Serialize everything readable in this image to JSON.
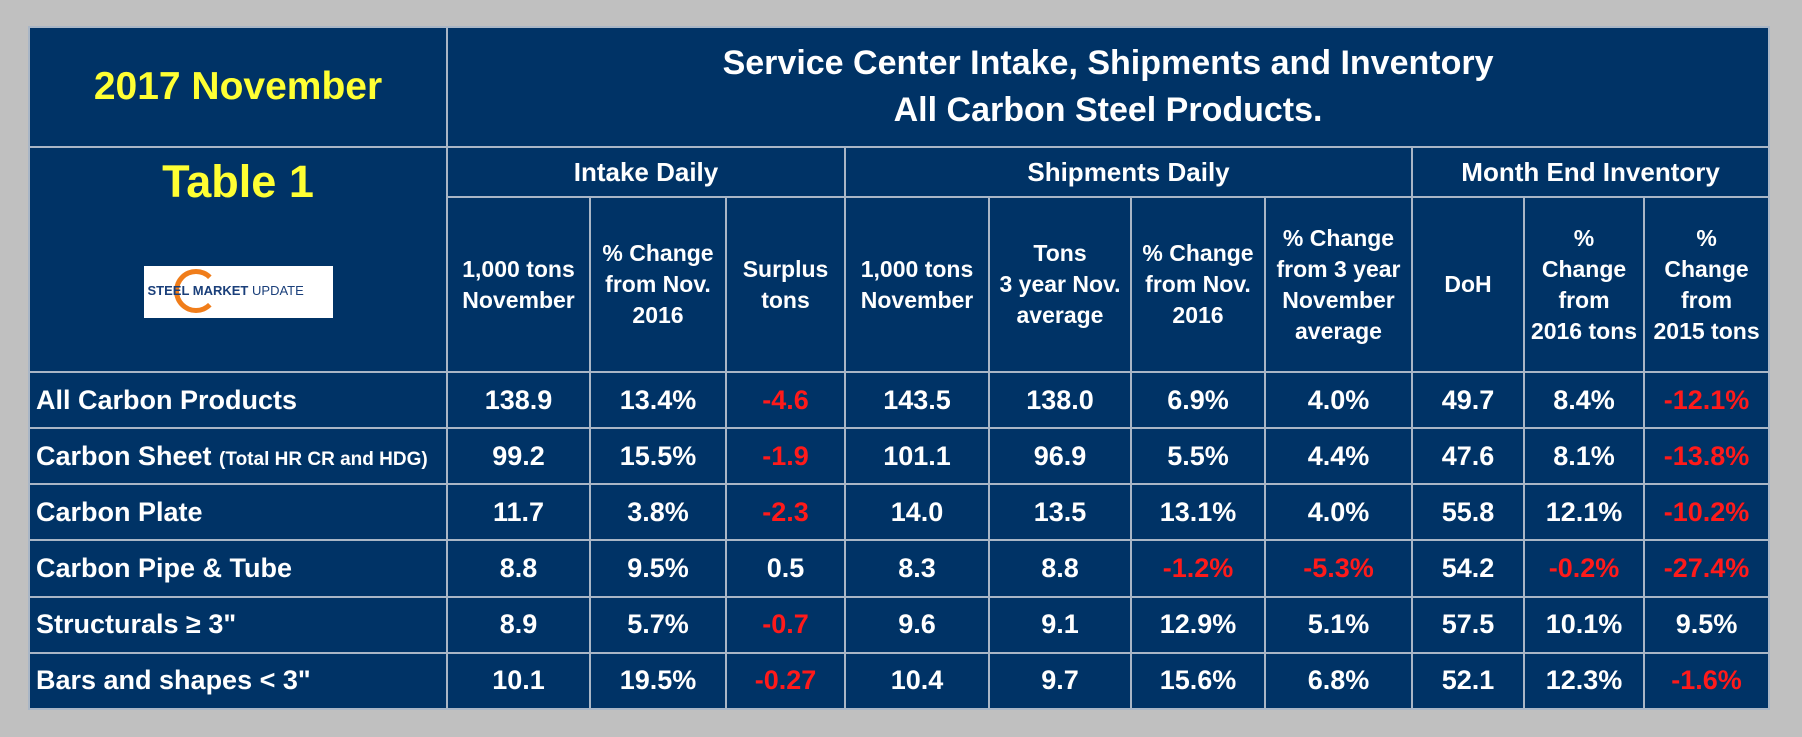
{
  "header": {
    "date_title": "2017 November",
    "title_line1": "Service Center Intake, Shipments and Inventory",
    "title_line2": "All Carbon Steel Products.",
    "table_label": "Table 1",
    "logo": {
      "text_bold": "STEEL MARKET",
      "text_thin": "UPDATE",
      "accent": "#f07d1a",
      "brand": "#1a3f7a"
    }
  },
  "groups": {
    "intake": "Intake Daily",
    "shipments": "Shipments Daily",
    "inventory": "Month End Inventory"
  },
  "columns": [
    [
      "1,000 tons",
      "November"
    ],
    [
      "% Change",
      "from Nov.",
      "2016"
    ],
    [
      "Surplus",
      "tons"
    ],
    [
      "1,000 tons",
      "November"
    ],
    [
      "Tons",
      "3 year Nov.",
      "average"
    ],
    [
      "% Change",
      "from Nov.",
      "2016"
    ],
    [
      "% Change",
      "from 3 year",
      "November",
      "average"
    ],
    [
      "DoH"
    ],
    [
      "%",
      "Change",
      "from",
      "2016 tons"
    ],
    [
      "%",
      "Change",
      "from",
      "2015 tons"
    ]
  ],
  "rows": [
    {
      "label": "All Carbon Products",
      "sublabel": "",
      "values": [
        "138.9",
        "13.4%",
        "-4.6",
        "143.5",
        "138.0",
        "6.9%",
        "4.0%",
        "49.7",
        "8.4%",
        "-12.1%"
      ]
    },
    {
      "label": "Carbon Sheet",
      "sublabel": "(Total HR CR and HDG)",
      "values": [
        "99.2",
        "15.5%",
        "-1.9",
        "101.1",
        "96.9",
        "5.5%",
        "4.4%",
        "47.6",
        "8.1%",
        "-13.8%"
      ]
    },
    {
      "label": "Carbon Plate",
      "sublabel": "",
      "values": [
        "11.7",
        "3.8%",
        "-2.3",
        "14.0",
        "13.5",
        "13.1%",
        "4.0%",
        "55.8",
        "12.1%",
        "-10.2%"
      ]
    },
    {
      "label": "Carbon Pipe & Tube",
      "sublabel": "",
      "values": [
        "8.8",
        "9.5%",
        "0.5",
        "8.3",
        "8.8",
        "-1.2%",
        "-5.3%",
        "54.2",
        "-0.2%",
        "-27.4%"
      ]
    },
    {
      "label": "Structurals ≥ 3\"",
      "sublabel": "",
      "values": [
        "8.9",
        "5.7%",
        "-0.7",
        "9.6",
        "9.1",
        "12.9%",
        "5.1%",
        "57.5",
        "10.1%",
        "9.5%"
      ]
    },
    {
      "label": "Bars and shapes < 3\"",
      "sublabel": "",
      "values": [
        "10.1",
        "19.5%",
        "-0.27",
        "10.4",
        "9.7",
        "15.6%",
        "6.8%",
        "52.1",
        "12.3%",
        "-1.6%"
      ]
    }
  ],
  "colors": {
    "background": "#003366",
    "gridline": "#a9b6c6",
    "highlight": "#ffff33",
    "negative": "#ff1a1a",
    "page": "#c0c0c0"
  }
}
